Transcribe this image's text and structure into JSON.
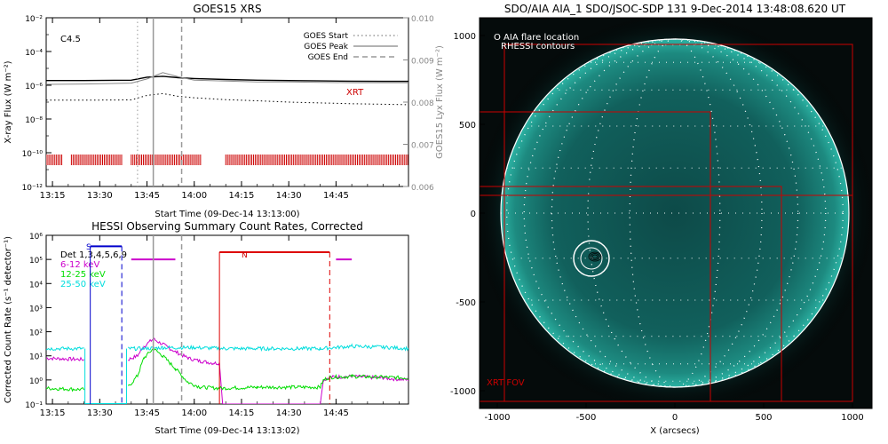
{
  "charts": {
    "goes": {
      "title": "GOES15 XRS",
      "xlabel": "Start Time (09-Dec-14 13:13:00)",
      "ylabel_left": "X-ray Flux (W m⁻²)",
      "ylabel_right": "GOES15 Lyx Flux (W m⁻²)",
      "class_label": "C4.5",
      "xrt_label": "XRT",
      "legend": [
        {
          "label": "GOES Start",
          "style": "dotted",
          "color": "#999999"
        },
        {
          "label": "GOES Peak",
          "style": "solid",
          "color": "#999999"
        },
        {
          "label": "GOES End",
          "style": "dashed",
          "color": "#999999"
        }
      ],
      "x_ticks": [
        "13:15",
        "13:30",
        "13:45",
        "14:00",
        "14:15",
        "14:30",
        "14:45"
      ],
      "y_ticks_left": [
        "10⁻²",
        "10⁻⁴",
        "10⁻⁶",
        "10⁻⁸",
        "10⁻¹⁰",
        "10⁻¹²"
      ],
      "y_ticks_right": [
        "0.010",
        "0.009",
        "0.008",
        "0.007",
        "0.006"
      ]
    },
    "hessi": {
      "title": "HESSI Observing Summary Count Rates, Corrected",
      "xlabel": "Start Time (09-Dec-14 13:13:02)",
      "ylabel": "Corrected Count Rate (s⁻¹ detector⁻¹)",
      "legend": [
        {
          "label": "Det 1,3,4,5,6,9",
          "color": "#000000"
        },
        {
          "label": "6-12 keV",
          "color": "#cc00cc"
        },
        {
          "label": "12-25 keV",
          "color": "#00dd00"
        },
        {
          "label": "25-50 keV",
          "color": "#00dddd"
        }
      ],
      "flag_s": "S",
      "flag_n": "N",
      "x_ticks": [
        "13:15",
        "13:30",
        "13:45",
        "14:00",
        "14:15",
        "14:30",
        "14:45"
      ],
      "y_ticks": [
        "10⁶",
        "10⁵",
        "10⁴",
        "10³",
        "10²",
        "10¹",
        "10⁰",
        "10⁻¹"
      ]
    },
    "aia": {
      "title": "SDO/AIA AIA_1 SDO/JSOC-SDP 131  9-Dec-2014 13:48:08.620 UT",
      "xlabel": "X (arcsecs)",
      "legend_location": "O AIA flare location",
      "legend_contours": "RHESSI contours",
      "fov_label": "XRT FOV",
      "x_ticks": [
        "-1000",
        "-500",
        "0",
        "500",
        "1000"
      ],
      "y_ticks": [
        "1000",
        "500",
        "0",
        "-500",
        "-1000"
      ]
    }
  },
  "chart_data": [
    {
      "type": "line",
      "title": "GOES15 XRS",
      "xlabel": "Start Time (09-Dec-14 13:13:00)",
      "ylabel": "X-ray Flux (W m-2)",
      "y_scale": "log",
      "ylim": [
        1e-12,
        0.01
      ],
      "x_range_minutes": [
        13.0,
        128.0
      ],
      "series": [
        {
          "name": "",
          "color": "#000000",
          "x": [
            13,
            25,
            40,
            45,
            50,
            55,
            60,
            70,
            80,
            90,
            100,
            110,
            120,
            128
          ],
          "y": [
            1.9e-06,
            1.9e-06,
            2e-06,
            3e-06,
            3.4e-06,
            2.8e-06,
            2.5e-06,
            2.2e-06,
            2e-06,
            1.9e-06,
            1.8e-06,
            1.75e-06,
            1.7e-06,
            1.7e-06
          ]
        },
        {
          "name": "",
          "color": "#888888",
          "x": [
            13,
            25,
            40,
            45,
            50,
            55,
            60,
            70,
            80,
            90,
            100,
            110,
            120,
            128
          ],
          "y": [
            0.00842,
            0.00843,
            0.00845,
            0.00855,
            0.0087,
            0.0086,
            0.00852,
            0.0085,
            0.00848,
            0.00848,
            0.00847,
            0.00846,
            0.00846,
            0.00846
          ]
        },
        {
          "name": "",
          "color": "#000000",
          "style": "dotted",
          "x": [
            13,
            25,
            40,
            45,
            50,
            55,
            60,
            70,
            80,
            90,
            100,
            110,
            120,
            128
          ],
          "y": [
            1.3e-07,
            1.3e-07,
            1.35e-07,
            2.5e-07,
            3.2e-07,
            2.2e-07,
            1.8e-07,
            1.4e-07,
            1.2e-07,
            1e-07,
            9e-08,
            8e-08,
            7.5e-08,
            7e-08
          ]
        }
      ],
      "markers": {
        "goes_start_min": 42,
        "goes_peak_min": 47,
        "goes_end_min": 56
      },
      "xrt_segments": [
        [
          13,
          18
        ],
        [
          21,
          37
        ],
        [
          40,
          62
        ],
        [
          70,
          128
        ]
      ]
    },
    {
      "type": "line",
      "title": "HESSI Observing Summary Count Rates, Corrected",
      "xlabel": "Start Time (09-Dec-14 13:13:02)",
      "ylabel": "Corrected Count Rate (s-1 detector-1)",
      "y_scale": "log",
      "ylim": [
        0.1,
        1000000.0
      ],
      "x_range_minutes": [
        13.0,
        128.0
      ],
      "series": [
        {
          "name": "6-12 keV",
          "color": "#cc00cc",
          "x": [
            13,
            25,
            25.5,
            38,
            39,
            42,
            44,
            47,
            50,
            54,
            58,
            62,
            66,
            68,
            69,
            100,
            101,
            103,
            110,
            120,
            128
          ],
          "y": [
            8,
            7,
            null,
            null,
            7,
            10,
            25,
            50,
            30,
            15,
            8,
            6,
            5,
            5,
            0.1,
            0.1,
            1,
            1.3,
            1.4,
            1.2,
            1.0
          ]
        },
        {
          "name": "12-25 keV",
          "color": "#00dd00",
          "x": [
            13,
            25,
            25.5,
            38,
            39,
            42,
            44,
            47,
            50,
            54,
            58,
            62,
            68,
            80,
            100,
            101,
            103,
            110,
            120,
            128
          ],
          "y": [
            0.45,
            0.4,
            null,
            null,
            0.5,
            1.5,
            8,
            20,
            10,
            3,
            0.8,
            0.5,
            0.45,
            0.5,
            0.5,
            1.0,
            1.3,
            1.4,
            1.3,
            1.2
          ]
        },
        {
          "name": "25-50 keV",
          "color": "#00dddd",
          "x": [
            13,
            25,
            25.5,
            38,
            39,
            45,
            50,
            60,
            70,
            80,
            90,
            100,
            110,
            120,
            128
          ],
          "y": [
            20,
            20,
            null,
            null,
            20,
            20,
            22,
            22,
            20,
            20,
            20,
            20,
            25,
            23,
            20
          ]
        }
      ],
      "segments": {
        "black": [
          [
            27,
            37
          ]
        ],
        "magenta": [
          [
            40,
            54
          ]
        ],
        "red": [
          [
            68,
            103
          ]
        ],
        "magenta2": [
          [
            105,
            110
          ]
        ]
      }
    },
    {
      "type": "heatmap",
      "title": "SDO/AIA AIA_1 SDO/JSOC-SDP 131  9-Dec-2014 13:48:08.620 UT",
      "xlabel": "X (arcsecs)",
      "xlim": [
        -1100,
        1100
      ],
      "ylim": [
        -1100,
        1100
      ],
      "flare_location": [
        -470,
        -260
      ]
    }
  ]
}
